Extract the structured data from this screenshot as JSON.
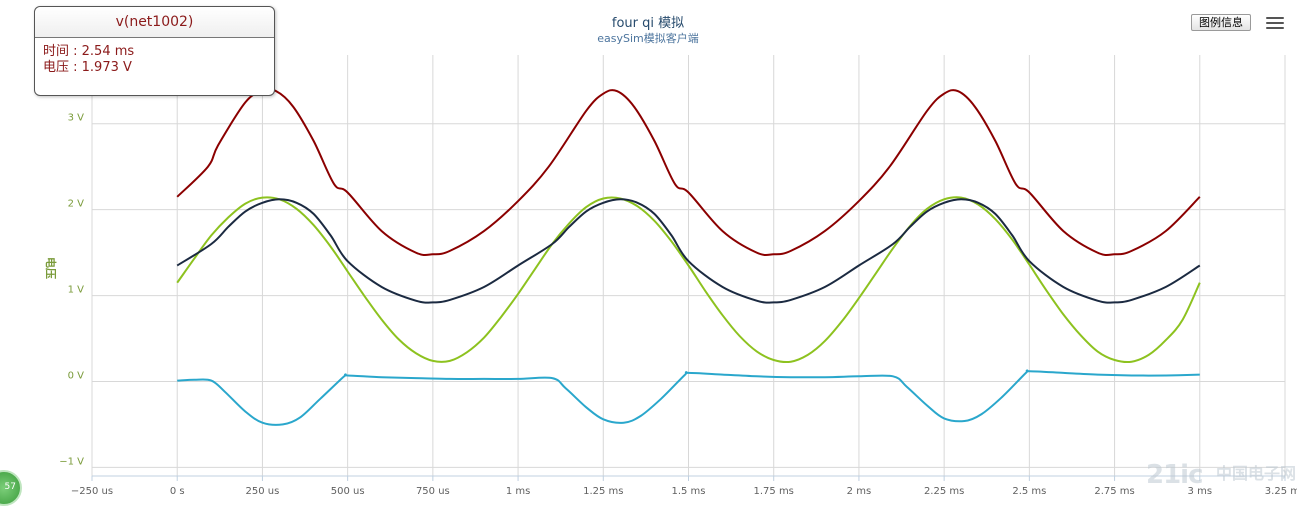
{
  "chart_data": {
    "type": "line",
    "title": "four qi 模拟",
    "subtitle": "easySim模拟客户端",
    "ylabel": "电压",
    "xlabel": "",
    "x_unit": "ms",
    "xlim": [
      -0.25,
      3.25
    ],
    "ylim": [
      -1.1,
      3.8
    ],
    "x_ticks": [
      -0.25,
      0,
      0.25,
      0.5,
      0.75,
      1,
      1.25,
      1.5,
      1.75,
      2,
      2.25,
      2.5,
      2.75,
      3,
      3.25
    ],
    "x_tick_labels": [
      "−250 us",
      "0 s",
      "250 us",
      "500 us",
      "750 us",
      "1 ms",
      "1.25 ms",
      "1.5 ms",
      "1.75 ms",
      "2 ms",
      "2.25 ms",
      "2.5 ms",
      "2.75 ms",
      "3 ms",
      "3.25 ms"
    ],
    "y_ticks": [
      -1,
      0,
      1,
      2,
      3
    ],
    "y_tick_labels": [
      "−1 V",
      "0 V",
      "1 V",
      "2 V",
      "3 V"
    ],
    "grid": true,
    "series": [
      {
        "color": "#8b0000",
        "x": [
          0,
          0.09,
          0.12,
          0.2,
          0.25,
          0.29,
          0.34,
          0.4,
          0.46,
          0.5,
          0.6,
          0.7,
          0.75,
          0.8,
          0.9,
          1.0,
          1.09,
          1.2,
          1.25,
          1.29,
          1.34,
          1.4,
          1.46,
          1.5,
          1.6,
          1.7,
          1.75,
          1.8,
          1.9,
          2.0,
          2.09,
          2.2,
          2.25,
          2.29,
          2.34,
          2.4,
          2.46,
          2.5,
          2.6,
          2.7,
          2.75,
          2.8,
          2.9,
          3.0
        ],
        "y": [
          2.15,
          2.5,
          2.75,
          3.25,
          3.38,
          3.38,
          3.2,
          2.8,
          2.3,
          2.2,
          1.75,
          1.5,
          1.48,
          1.52,
          1.75,
          2.1,
          2.5,
          3.15,
          3.35,
          3.38,
          3.2,
          2.8,
          2.3,
          2.2,
          1.75,
          1.5,
          1.48,
          1.52,
          1.75,
          2.1,
          2.5,
          3.15,
          3.35,
          3.38,
          3.2,
          2.8,
          2.3,
          2.2,
          1.75,
          1.5,
          1.48,
          1.52,
          1.75,
          2.15
        ]
      },
      {
        "color": "#8dc21f",
        "x": [
          0,
          0.05,
          0.1,
          0.15,
          0.2,
          0.25,
          0.3,
          0.35,
          0.4,
          0.45,
          0.5,
          0.55,
          0.6,
          0.65,
          0.7,
          0.75,
          0.8,
          0.85,
          0.9,
          0.95,
          1.0,
          1.05,
          1.1,
          1.15,
          1.2,
          1.25,
          1.3,
          1.35,
          1.4,
          1.45,
          1.5,
          1.55,
          1.6,
          1.65,
          1.7,
          1.75,
          1.8,
          1.85,
          1.9,
          1.95,
          2.0,
          2.05,
          2.1,
          2.15,
          2.2,
          2.25,
          2.3,
          2.35,
          2.4,
          2.45,
          2.5,
          2.55,
          2.6,
          2.65,
          2.7,
          2.75,
          2.8,
          2.85,
          2.9,
          2.95,
          3.0
        ],
        "y": [
          1.15,
          1.43,
          1.7,
          1.91,
          2.07,
          2.14,
          2.12,
          2.01,
          1.82,
          1.57,
          1.28,
          0.99,
          0.72,
          0.49,
          0.33,
          0.24,
          0.24,
          0.34,
          0.51,
          0.75,
          1.02,
          1.31,
          1.6,
          1.84,
          2.03,
          2.13,
          2.13,
          2.04,
          1.87,
          1.63,
          1.35,
          1.05,
          0.77,
          0.53,
          0.35,
          0.25,
          0.23,
          0.31,
          0.47,
          0.7,
          0.97,
          1.26,
          1.55,
          1.81,
          2.01,
          2.12,
          2.14,
          2.06,
          1.89,
          1.65,
          1.36,
          1.06,
          0.78,
          0.54,
          0.35,
          0.25,
          0.23,
          0.31,
          0.48,
          0.72,
          1.15
        ]
      },
      {
        "color": "#1b2a41",
        "x": [
          0,
          0.1,
          0.15,
          0.2,
          0.25,
          0.3,
          0.35,
          0.4,
          0.45,
          0.5,
          0.6,
          0.7,
          0.75,
          0.8,
          0.9,
          1.0,
          1.1,
          1.15,
          1.2,
          1.25,
          1.3,
          1.35,
          1.4,
          1.45,
          1.5,
          1.6,
          1.7,
          1.75,
          1.8,
          1.9,
          2.0,
          2.1,
          2.15,
          2.2,
          2.25,
          2.3,
          2.35,
          2.4,
          2.45,
          2.5,
          2.6,
          2.7,
          2.75,
          2.8,
          2.9,
          3.0
        ],
        "y": [
          1.35,
          1.6,
          1.8,
          1.98,
          2.08,
          2.12,
          2.08,
          1.95,
          1.7,
          1.4,
          1.1,
          0.94,
          0.92,
          0.95,
          1.1,
          1.35,
          1.6,
          1.8,
          1.98,
          2.08,
          2.12,
          2.08,
          1.95,
          1.7,
          1.4,
          1.1,
          0.94,
          0.92,
          0.95,
          1.1,
          1.35,
          1.6,
          1.8,
          1.98,
          2.08,
          2.12,
          2.08,
          1.95,
          1.7,
          1.4,
          1.1,
          0.94,
          0.92,
          0.95,
          1.1,
          1.35
        ]
      },
      {
        "color": "#2aa7cc",
        "x": [
          0,
          0.05,
          0.1,
          0.14,
          0.2,
          0.25,
          0.31,
          0.36,
          0.42,
          0.49,
          0.5,
          0.6,
          0.7,
          0.8,
          0.9,
          1.0,
          1.1,
          1.14,
          1.2,
          1.25,
          1.31,
          1.36,
          1.42,
          1.49,
          1.5,
          1.6,
          1.7,
          1.8,
          1.9,
          2.0,
          2.1,
          2.14,
          2.2,
          2.25,
          2.31,
          2.36,
          2.42,
          2.49,
          2.5,
          2.6,
          2.7,
          2.8,
          2.9,
          3.0
        ],
        "y": [
          0.01,
          0.02,
          0.01,
          -0.12,
          -0.35,
          -0.48,
          -0.5,
          -0.42,
          -0.2,
          0.06,
          0.07,
          0.05,
          0.04,
          0.03,
          0.03,
          0.03,
          0.04,
          -0.08,
          -0.3,
          -0.44,
          -0.48,
          -0.4,
          -0.2,
          0.08,
          0.1,
          0.08,
          0.06,
          0.05,
          0.05,
          0.06,
          0.06,
          -0.06,
          -0.28,
          -0.43,
          -0.46,
          -0.38,
          -0.18,
          0.1,
          0.12,
          0.1,
          0.08,
          0.07,
          0.07,
          0.08
        ]
      }
    ]
  },
  "toolbar": {
    "legend_button_label": "图例信息"
  },
  "tooltip": {
    "title": "v(net1002)",
    "time_line": "时间 : 2.54 ms",
    "voltage_line": "电压 : 1.973 V"
  },
  "watermark": {
    "brand": "21ic",
    "site": "中国电子网"
  },
  "badge": {
    "text": "57"
  },
  "colors": {
    "grid": "#d8d8d8",
    "axis_line": "#c0d0e0",
    "title": "#274b6d"
  }
}
